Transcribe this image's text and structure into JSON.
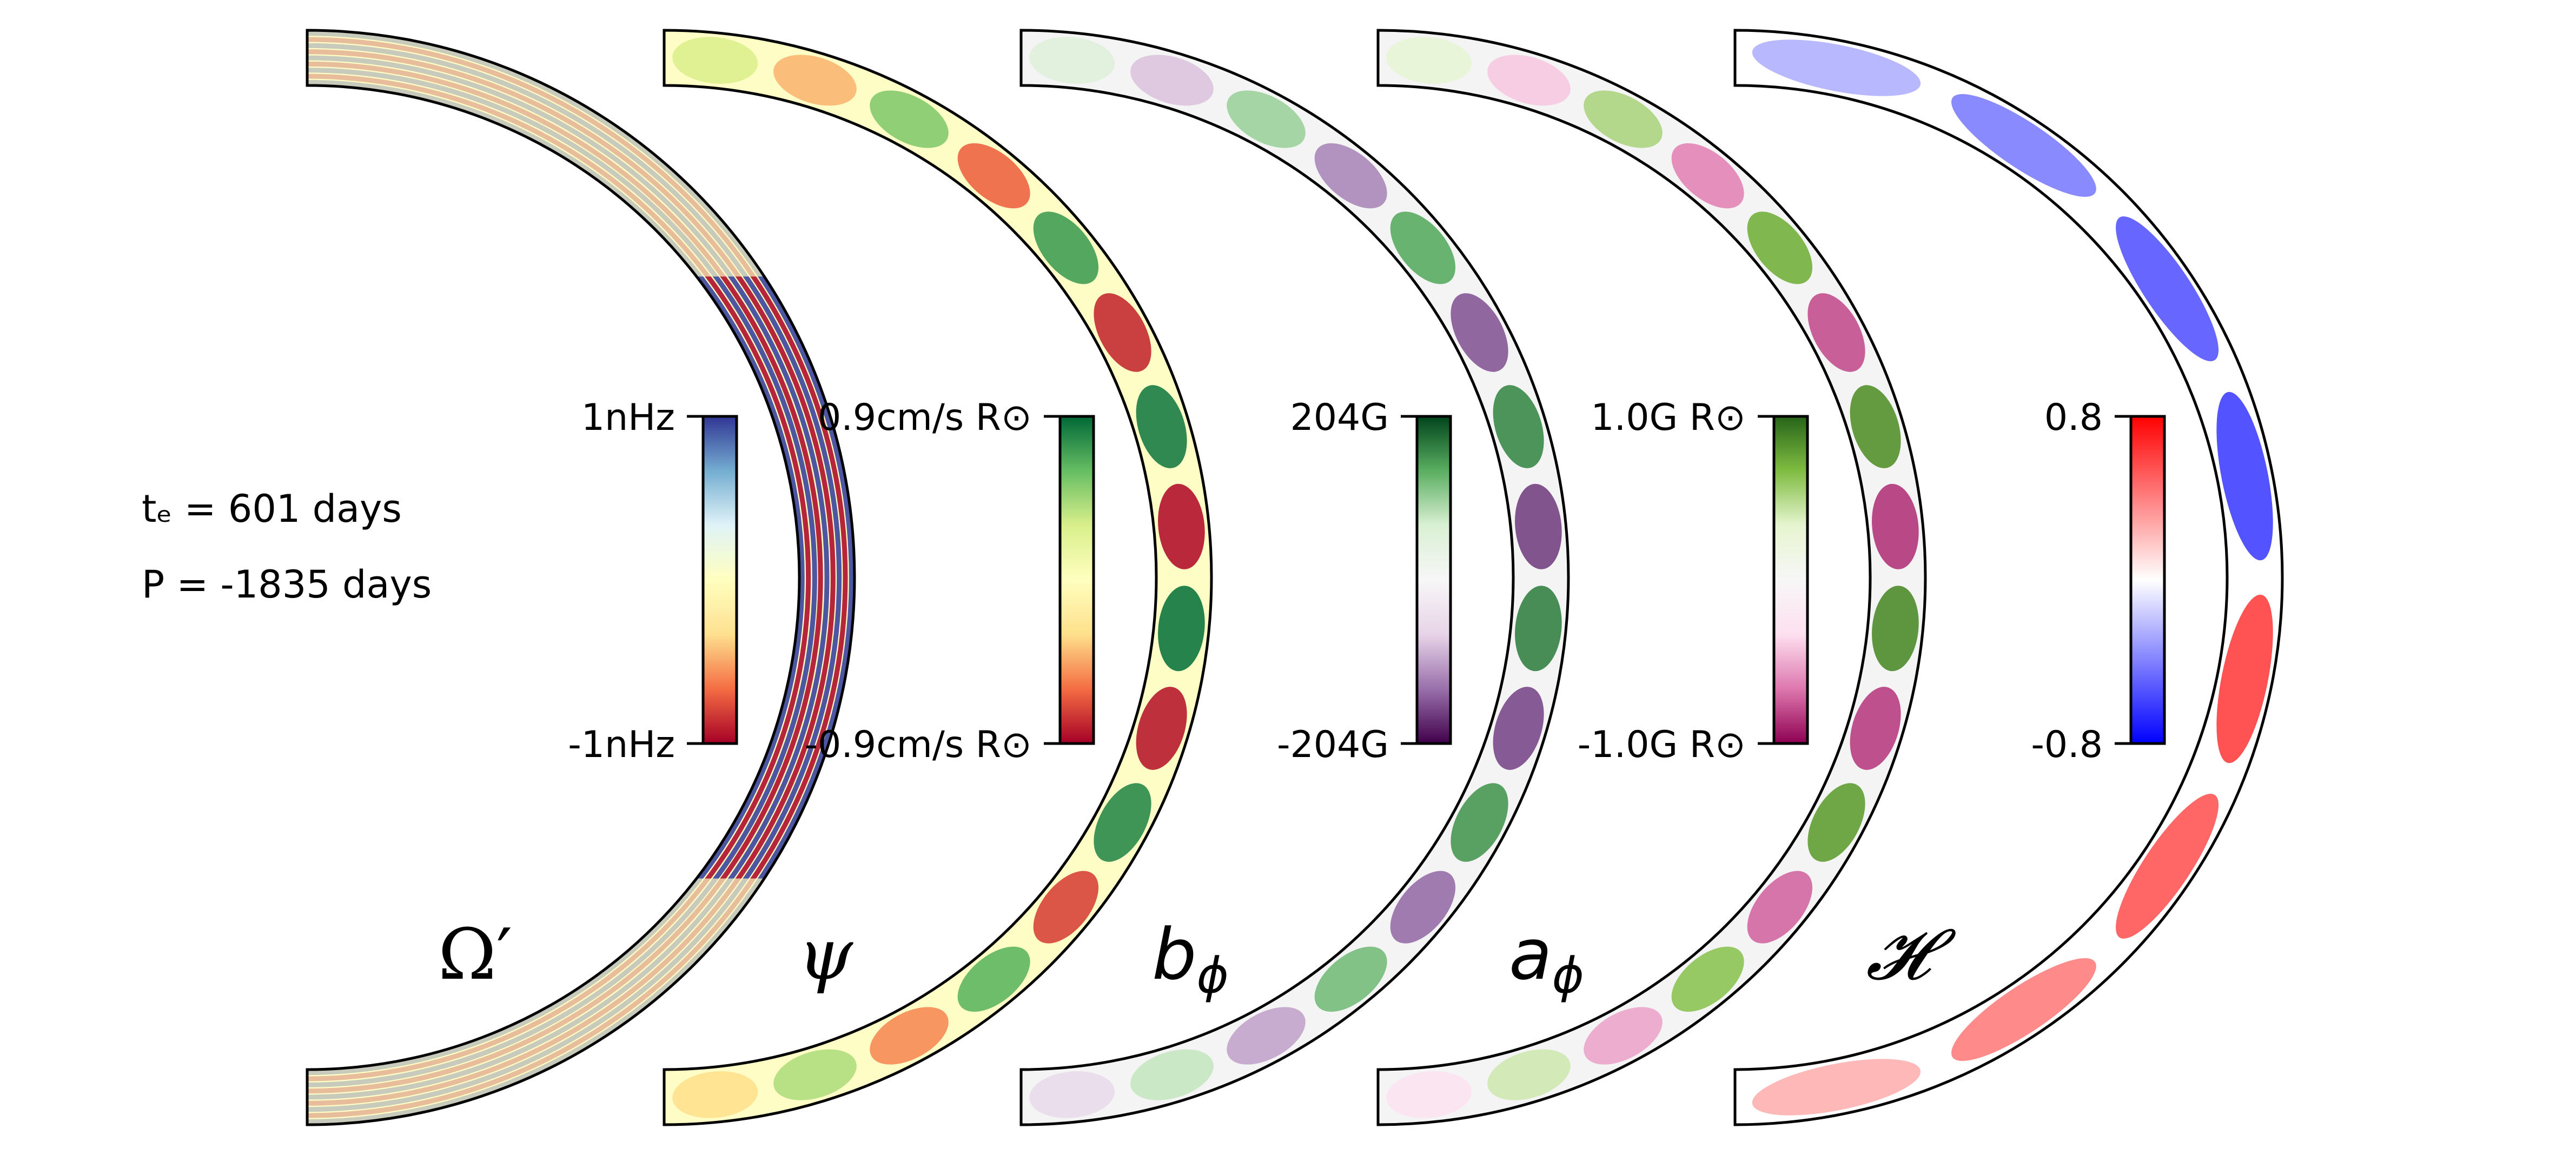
{
  "info": {
    "te_label": "tₑ = 601 days",
    "period_label": "P  = -1835 days"
  },
  "panels": [
    {
      "symbol_main": "Ω",
      "symbol_sub": "′",
      "cbar_top": "1nHz",
      "cbar_bottom": "-1nHz",
      "colormap": [
        "#a50026",
        "#f46d43",
        "#fee090",
        "#ffffbf",
        "#e0f3f8",
        "#74add1",
        "#313695"
      ],
      "background": "#fefdc6",
      "pattern": "radial_bands",
      "contrast": 1.0
    },
    {
      "symbol_main": "ψ",
      "symbol_sub": "",
      "cbar_top": "0.9cm/s R⊙",
      "cbar_bottom": "-0.9cm/s R⊙",
      "colormap": [
        "#a50026",
        "#f46d43",
        "#fee08b",
        "#ffffbf",
        "#d9ef8b",
        "#66bd63",
        "#006837"
      ],
      "background": "#fefdc6",
      "pattern": "cells",
      "contrast": 1.0
    },
    {
      "symbol_main": "b",
      "symbol_sub": "ϕ",
      "cbar_top": "204G",
      "cbar_bottom": "-204G",
      "colormap": [
        "#40004b",
        "#9970ab",
        "#e7d4e8",
        "#f7f7f7",
        "#d9f0d3",
        "#5aae61",
        "#00441b"
      ],
      "background": "#f4f4f4",
      "pattern": "cells",
      "contrast": 0.85
    },
    {
      "symbol_main": "a",
      "symbol_sub": "ϕ",
      "cbar_top": "1.0G R⊙",
      "cbar_bottom": "-1.0G R⊙",
      "colormap": [
        "#8e0152",
        "#de77ae",
        "#fde0ef",
        "#f7f7f7",
        "#e6f5d0",
        "#7fbc41",
        "#276419"
      ],
      "background": "#f4f4f4",
      "pattern": "cells",
      "contrast": 0.9
    },
    {
      "symbol_main": "𝓗",
      "symbol_sub": "",
      "cbar_top": "0.8",
      "cbar_bottom": "-0.8",
      "colormap": [
        "#0000ff",
        "#8080ff",
        "#ffffff",
        "#ff8080",
        "#ff0000"
      ],
      "background": "#ffffff",
      "pattern": "helicity",
      "contrast": 0.8
    }
  ]
}
